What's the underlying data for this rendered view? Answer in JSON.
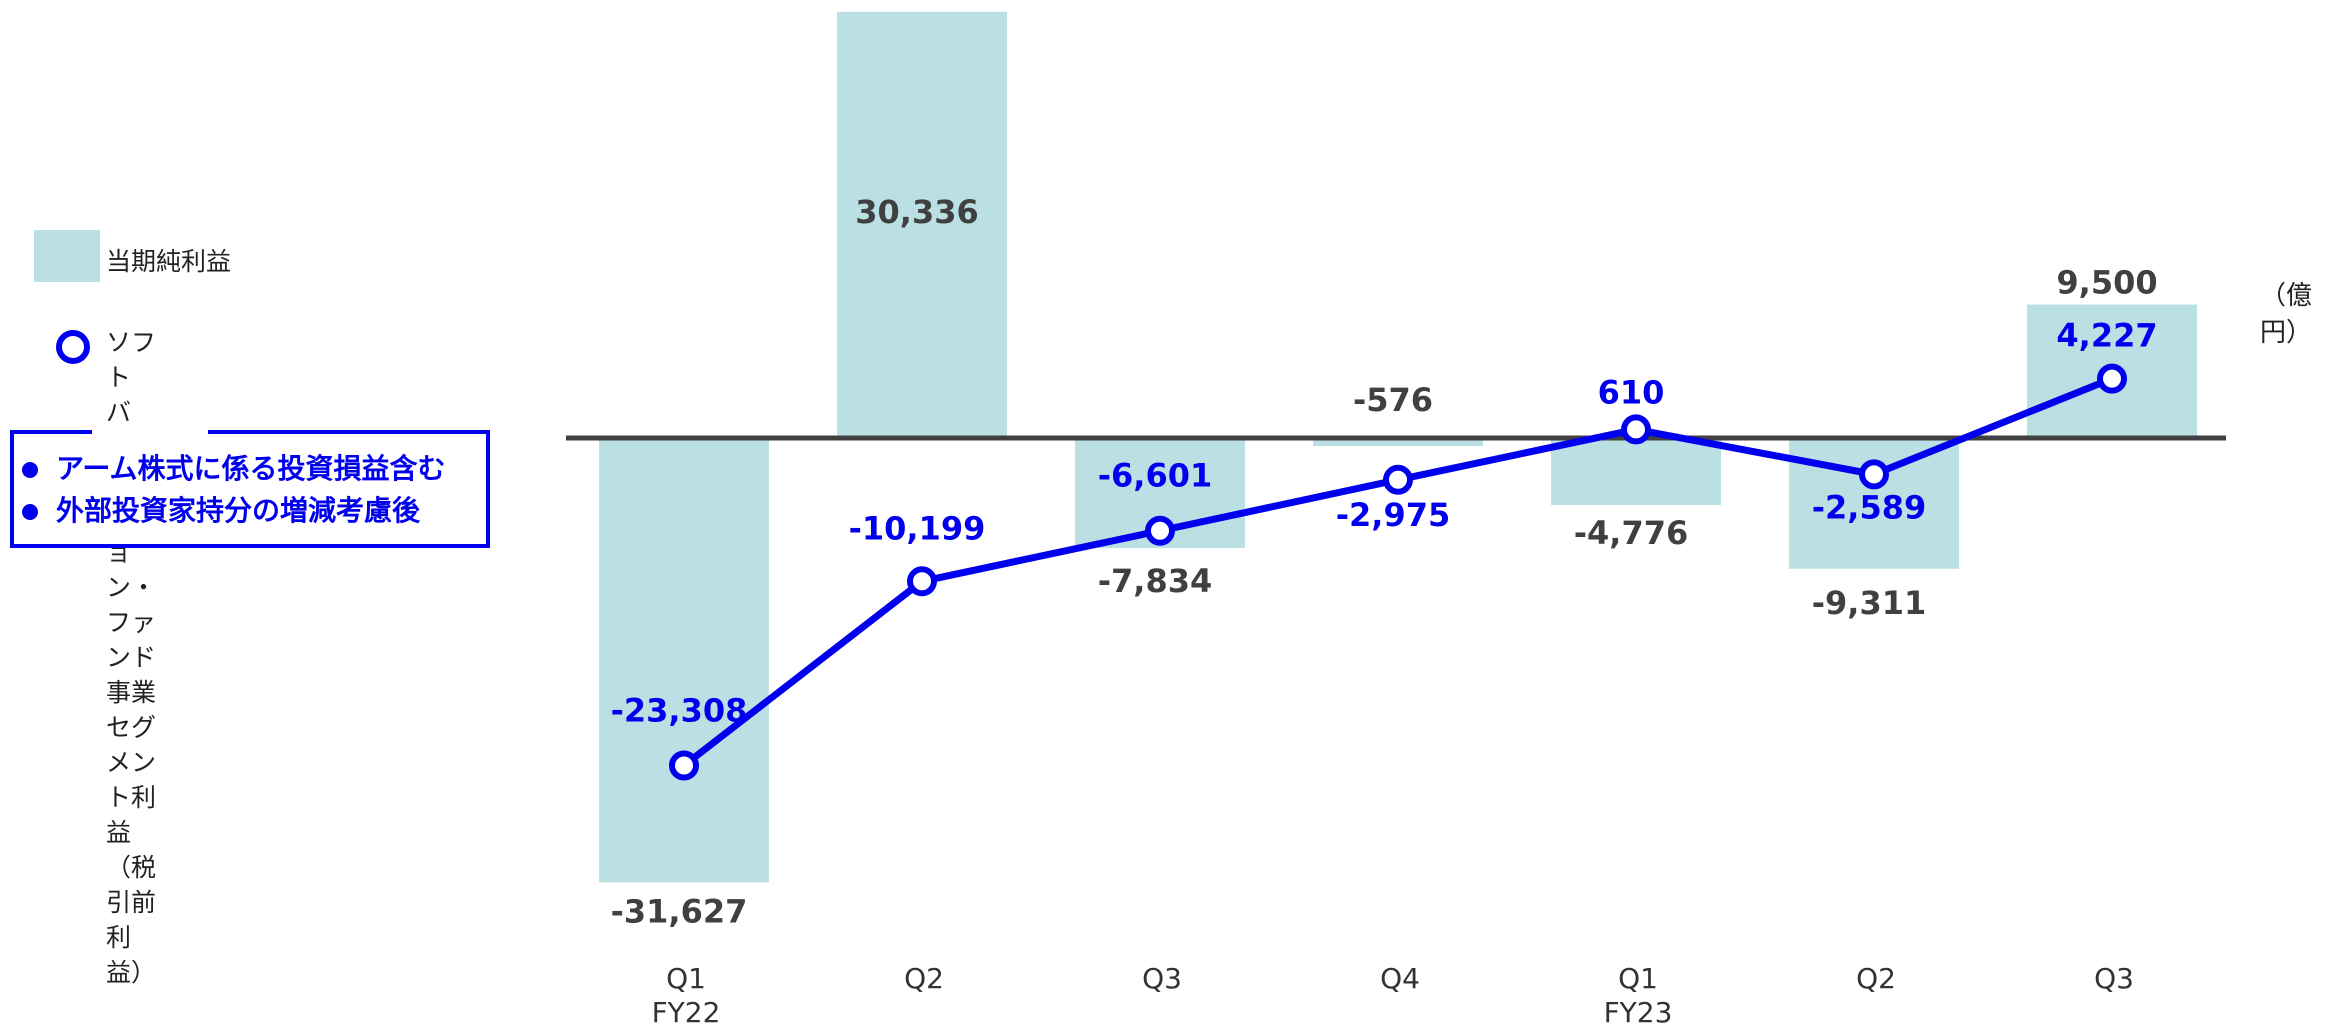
{
  "chart_data": {
    "type": "bar",
    "categories": [
      "Q1",
      "Q2",
      "Q3",
      "Q4",
      "Q1",
      "Q2",
      "Q3"
    ],
    "category_groups": [
      "FY22",
      "",
      "",
      "",
      "FY23",
      "",
      ""
    ],
    "series": [
      {
        "name": "当期純利益",
        "type": "bar",
        "values": [
          -31627,
          30336,
          -7834,
          -576,
          -4776,
          -9311,
          9500
        ],
        "color": "#bbe0e3"
      },
      {
        "name": "ソフトバンク・ビジョン・ファンド事業セグメント利益（税引前利益）",
        "type": "line",
        "values": [
          -23308,
          -10199,
          -6601,
          -2975,
          610,
          -2589,
          4227
        ],
        "color": "#0000ee"
      }
    ],
    "bar_labels": [
      "-31,627",
      "30,336",
      "-7,834",
      "-576",
      "-4,776",
      "-9,311",
      "9,500"
    ],
    "line_labels": [
      "-23,308",
      "-10,199",
      "-6,601",
      "-2,975",
      "610",
      "-2,589",
      "4,227"
    ],
    "unit": "（億円）",
    "ylim": [
      -32000,
      31000
    ],
    "grid": false,
    "legend_position": "left"
  },
  "legend": {
    "bar_label": "当期純利益",
    "line_label_1": "ソフトバンク・ビジョン・ファンド事業",
    "line_label_2": "セグメント利益（税引前利益）"
  },
  "notes": [
    "アーム株式に係る投資損益含む",
    "外部投資家持分の増減考慮後"
  ],
  "colors": {
    "bar": "#bbe0e3",
    "line": "#0000ee",
    "axis": "#404040",
    "bar_text": "#404040"
  }
}
